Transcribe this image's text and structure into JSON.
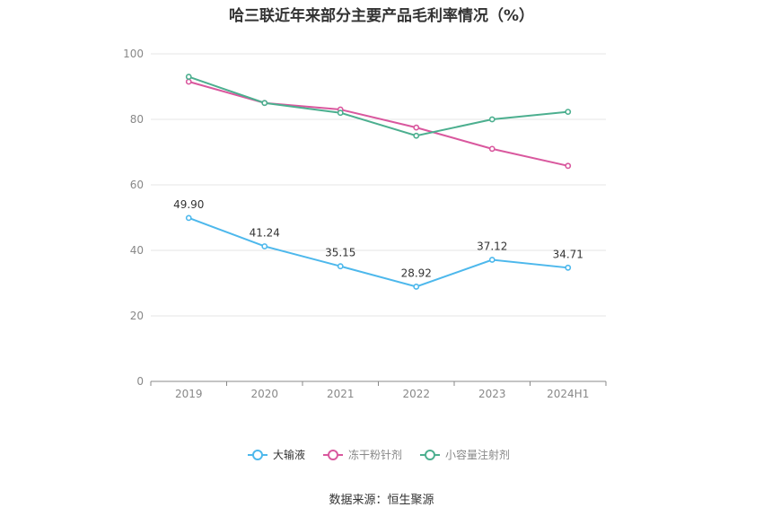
{
  "title": "哈三联近年来部分主要产品毛利率情况（%）",
  "source": "数据来源：恒生聚源",
  "colors": {
    "grid": "#e6e6e6",
    "axis": "#888888",
    "tick_text": "#888888",
    "label_text": "#333333"
  },
  "chart_data": {
    "type": "line",
    "title": "哈三联近年来部分主要产品毛利率情况（%）",
    "categories": [
      "2019",
      "2020",
      "2021",
      "2022",
      "2023",
      "2024H1"
    ],
    "ylim": [
      0,
      100
    ],
    "yticks": [
      0,
      20,
      40,
      60,
      80,
      100
    ],
    "grid": true,
    "legend_position": "bottom",
    "series": [
      {
        "name": "大输液",
        "color": "#4db8ec",
        "values": [
          49.9,
          41.24,
          35.15,
          28.92,
          37.12,
          34.71
        ],
        "labels": [
          "49.90",
          "41.24",
          "35.15",
          "28.92",
          "37.12",
          "34.71"
        ]
      },
      {
        "name": "冻干粉针剂",
        "color": "#d9589e",
        "values": [
          91.5,
          85.0,
          83.0,
          77.5,
          71.0,
          65.8
        ]
      },
      {
        "name": "小容量注射剂",
        "color": "#4caf8f",
        "values": [
          93.0,
          85.0,
          82.0,
          75.0,
          80.0,
          82.3
        ]
      }
    ]
  }
}
